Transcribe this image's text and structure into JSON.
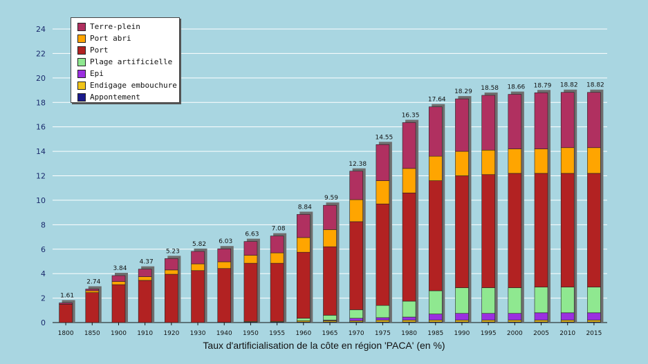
{
  "chart_data": {
    "type": "bar",
    "stacked": true,
    "title": "",
    "xlabel": "Taux d'artificialisation de la côte en région 'PACA' (en %)",
    "ylabel": "",
    "ylim": [
      0,
      24
    ],
    "yticks": [
      "0",
      "2",
      "4",
      "6",
      "8",
      "10",
      "12",
      "14",
      "16",
      "18",
      "20",
      "22",
      "24"
    ],
    "grid": true,
    "legend_position": "top-left",
    "categories": [
      "1800",
      "1850",
      "1900",
      "1910",
      "1920",
      "1930",
      "1940",
      "1950",
      "1955",
      "1960",
      "1965",
      "1970",
      "1975",
      "1980",
      "1985",
      "1990",
      "1995",
      "2000",
      "2005",
      "2010",
      "2015"
    ],
    "totals": [
      "1.61",
      "2.74",
      "3.84",
      "4.37",
      "5.23",
      "5.82",
      "6.03",
      "6.63",
      "7.08",
      "8.84",
      "9.59",
      "12.38",
      "14.55",
      "16.35",
      "17.64",
      "18.29",
      "18.58",
      "18.66",
      "18.79",
      "18.82",
      "18.82"
    ],
    "series": [
      {
        "name": "Appontement",
        "color": "#1a1a8c",
        "values": [
          0,
          0,
          0,
          0,
          0,
          0,
          0.02,
          0.05,
          0.05,
          0.05,
          0.05,
          0.05,
          0.05,
          0.05,
          0.05,
          0.05,
          0.05,
          0.05,
          0.05,
          0.05,
          0.05
        ]
      },
      {
        "name": "Endigage embouchure",
        "color": "#f0c419",
        "values": [
          0,
          0,
          0,
          0,
          0,
          0,
          0,
          0.05,
          0.05,
          0.1,
          0.1,
          0.1,
          0.15,
          0.15,
          0.15,
          0.15,
          0.15,
          0.15,
          0.15,
          0.15,
          0.15
        ]
      },
      {
        "name": "Epi",
        "color": "#9b2fe0",
        "values": [
          0,
          0,
          0,
          0,
          0,
          0,
          0,
          0,
          0,
          0,
          0.05,
          0.2,
          0.2,
          0.25,
          0.5,
          0.55,
          0.55,
          0.55,
          0.6,
          0.6,
          0.6
        ]
      },
      {
        "name": "Plage artificielle",
        "color": "#8fe890",
        "values": [
          0,
          0,
          0,
          0,
          0,
          0,
          0,
          0,
          0,
          0.2,
          0.4,
          0.7,
          1.0,
          1.3,
          1.9,
          2.1,
          2.1,
          2.1,
          2.1,
          2.1,
          2.1
        ]
      },
      {
        "name": "Port",
        "color": "#b22222",
        "values": [
          1.5,
          2.45,
          3.1,
          3.45,
          3.95,
          4.25,
          4.4,
          4.75,
          4.75,
          5.4,
          5.6,
          7.2,
          8.3,
          8.85,
          9.0,
          9.15,
          9.25,
          9.35,
          9.3,
          9.3,
          9.3
        ]
      },
      {
        "name": "Port abri",
        "color": "#ffa500",
        "values": [
          0,
          0.15,
          0.25,
          0.3,
          0.35,
          0.55,
          0.55,
          0.65,
          0.85,
          1.2,
          1.4,
          1.8,
          1.9,
          2.0,
          2.0,
          2.0,
          2.0,
          2.0,
          2.0,
          2.1,
          2.1
        ]
      },
      {
        "name": "Terre-plein",
        "color": "#b03060",
        "values": [
          0.11,
          0.14,
          0.49,
          0.62,
          0.93,
          1.02,
          1.06,
          1.13,
          1.38,
          1.89,
          1.99,
          2.33,
          2.95,
          3.75,
          4.04,
          4.29,
          4.48,
          4.46,
          4.59,
          4.52,
          4.52
        ]
      }
    ],
    "legend_order": [
      "Terre-plein",
      "Port abri",
      "Port",
      "Plage artificielle",
      "Epi",
      "Endigage embouchure",
      "Appontement"
    ]
  }
}
